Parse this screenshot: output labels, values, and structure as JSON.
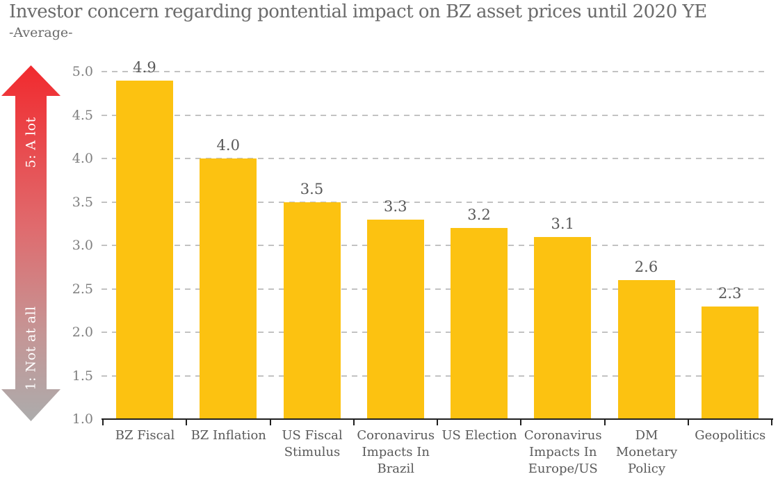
{
  "page": {
    "title": "Investor concern regarding pontential impact on BZ asset prices until 2020 YE",
    "subtitle": "-Average-"
  },
  "scale_arrow": {
    "top_label": "5: A lot",
    "bottom_label": "1: Not at all",
    "gradient_colors": [
      "#f12a2e",
      "#e06a6d",
      "#c59595",
      "#acacac"
    ],
    "label_color": "#ffffff"
  },
  "chart_data": {
    "type": "bar",
    "title": "Investor concern regarding pontential impact on BZ asset prices until 2020 YE",
    "subtitle": "-Average-",
    "categories": [
      "BZ Fiscal",
      "BZ Inflation",
      "US Fiscal Stimulus",
      "Coronavirus Impacts In Brazil",
      "US Election",
      "Coronavirus Impacts In Europe/US",
      "DM Monetary Policy",
      "Geopolitics"
    ],
    "category_lines": [
      [
        "BZ Fiscal"
      ],
      [
        "BZ Inflation"
      ],
      [
        "US Fiscal",
        "Stimulus"
      ],
      [
        "Coronavirus",
        "Impacts In",
        "Brazil"
      ],
      [
        "US Election"
      ],
      [
        "Coronavirus",
        "Impacts In",
        "Europe/US"
      ],
      [
        "DM",
        "Monetary",
        "Policy"
      ],
      [
        "Geopolitics"
      ]
    ],
    "values": [
      4.9,
      4.0,
      3.5,
      3.3,
      3.2,
      3.1,
      2.6,
      2.3
    ],
    "xlabel": "",
    "ylabel": "",
    "ylim": [
      1.0,
      5.0
    ],
    "yticks": [
      1.0,
      1.5,
      2.0,
      2.5,
      3.0,
      3.5,
      4.0,
      4.5,
      5.0
    ],
    "grid": "horizontal-dashed",
    "legend": "none",
    "bar_color": "#fcc211",
    "value_label_color": "#595959",
    "tick_label_color": "#7f7f7f",
    "gridline_color": "#c2c2c2",
    "axis_color": "#1f1f1f"
  }
}
